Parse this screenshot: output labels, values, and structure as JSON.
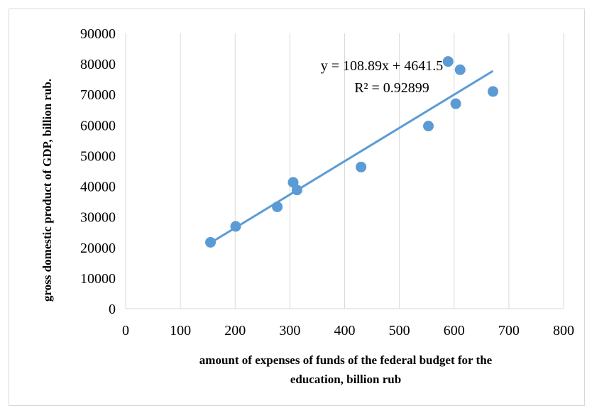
{
  "chart_data": {
    "type": "scatter",
    "title": "",
    "xlabel_lines": [
      "amount of expenses of funds of the federal budget for the",
      "education, billion rub"
    ],
    "ylabel": "gross domestic product of GDP, billion rub.",
    "xlim": [
      0,
      800
    ],
    "ylim": [
      0,
      90000
    ],
    "x_ticks": [
      "0",
      "100",
      "200",
      "300",
      "400",
      "500",
      "600",
      "700",
      "800"
    ],
    "y_ticks": [
      "0",
      "10000",
      "20000",
      "30000",
      "40000",
      "50000",
      "60000",
      "70000",
      "80000",
      "90000"
    ],
    "grid": {
      "vertical": true,
      "horizontal": false
    },
    "series": [
      {
        "x": [
          155,
          201,
          277,
          306,
          313,
          430,
          553,
          589,
          603,
          611,
          671
        ],
        "y": [
          21700,
          26900,
          33300,
          41300,
          38800,
          46300,
          59700,
          80800,
          67000,
          78100,
          71000
        ],
        "color": "#5B9BD5"
      }
    ],
    "trendline": {
      "slope": 108.89,
      "intercept": 4641.5,
      "x_range": [
        155,
        671
      ],
      "color": "#5B9BD5",
      "equation": "y = 108.89x + 4641.5",
      "r_squared": "R² = 0.92899"
    }
  }
}
